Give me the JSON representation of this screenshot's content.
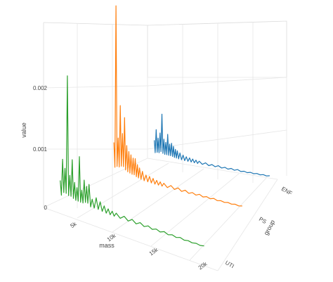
{
  "chart_data": {
    "type": "line",
    "chart_kind": "3d-waterfall-line",
    "xlabel": "mass",
    "ylabel": "group",
    "zlabel": "value",
    "x_ticks": [
      {
        "value": 5000,
        "label": "5k"
      },
      {
        "value": 10000,
        "label": "10k"
      },
      {
        "value": 15000,
        "label": "15k"
      },
      {
        "value": 20000,
        "label": "20k"
      }
    ],
    "z_ticks": [
      {
        "value": 0,
        "label": "0"
      },
      {
        "value": 0.001,
        "label": "0.001"
      },
      {
        "value": 0.002,
        "label": "0.002"
      }
    ],
    "groups": [
      "UTI",
      "PS",
      "ENF"
    ],
    "xlim": [
      1500,
      21000
    ],
    "zlim": [
      0,
      0.0032
    ],
    "grid": true,
    "series": [
      {
        "name": "UTI",
        "color": "#2ca02c",
        "x": [
          2000,
          2300,
          2600,
          2900,
          3200,
          3500,
          3800,
          4100,
          4400,
          4700,
          5000,
          5300,
          5600,
          6000,
          6500,
          7000,
          7500,
          8000,
          8500,
          9000,
          10000,
          11000,
          12000,
          13000,
          14000,
          15000,
          16000,
          17000,
          18000,
          19000,
          20000
        ],
        "values": [
          0.00035,
          0.00075,
          0.0006,
          0.0023,
          0.0005,
          0.0008,
          0.0004,
          0.00032,
          0.0009,
          0.0003,
          0.0005,
          0.0004,
          0.00045,
          0.0002,
          0.00025,
          0.0002,
          0.00015,
          0.00012,
          0.0001,
          9e-05,
          8e-05,
          7e-05,
          6e-05,
          5e-05,
          4e-05,
          4e-05,
          3e-05,
          3e-05,
          2e-05,
          2e-05,
          2e-05
        ]
      },
      {
        "name": "PS",
        "color": "#ff7f0e",
        "x": [
          2000,
          2300,
          2600,
          2900,
          3200,
          3500,
          3800,
          4100,
          4400,
          4700,
          5000,
          5300,
          5600,
          6000,
          6500,
          7000,
          7500,
          8000,
          8500,
          9000,
          10000,
          11000,
          12000,
          13000,
          14000,
          15000,
          16000,
          17000,
          18000,
          19000,
          20000
        ],
        "values": [
          0.0006,
          0.0031,
          0.0007,
          0.0013,
          0.0008,
          0.0011,
          0.0006,
          0.0005,
          0.00045,
          0.0004,
          0.0004,
          0.0003,
          0.00025,
          0.0002,
          0.00015,
          0.00014,
          0.00012,
          0.0001,
          9e-05,
          8e-05,
          7e-05,
          6e-05,
          5e-05,
          4e-05,
          4e-05,
          3e-05,
          3e-05,
          2e-05,
          2e-05,
          2e-05,
          2e-05
        ]
      },
      {
        "name": "ENF",
        "color": "#1f77b4",
        "x": [
          2000,
          2300,
          2600,
          2900,
          3200,
          3500,
          3800,
          4100,
          4400,
          4700,
          5000,
          5300,
          5600,
          6000,
          6500,
          7000,
          7500,
          8000,
          8500,
          9000,
          10000,
          11000,
          12000,
          13000,
          14000,
          15000,
          16000,
          17000,
          18000,
          19000,
          20000
        ],
        "values": [
          0.0003,
          0.0005,
          0.00035,
          0.00045,
          0.0008,
          0.00035,
          0.0003,
          0.00045,
          0.00028,
          0.0003,
          0.00025,
          0.0002,
          0.00018,
          0.00015,
          0.00012,
          0.0001,
          9e-05,
          8e-05,
          7e-05,
          6e-05,
          5e-05,
          4e-05,
          4e-05,
          3e-05,
          3e-05,
          3e-05,
          2e-05,
          2e-05,
          2e-05,
          2e-05,
          2e-05
        ]
      }
    ]
  }
}
